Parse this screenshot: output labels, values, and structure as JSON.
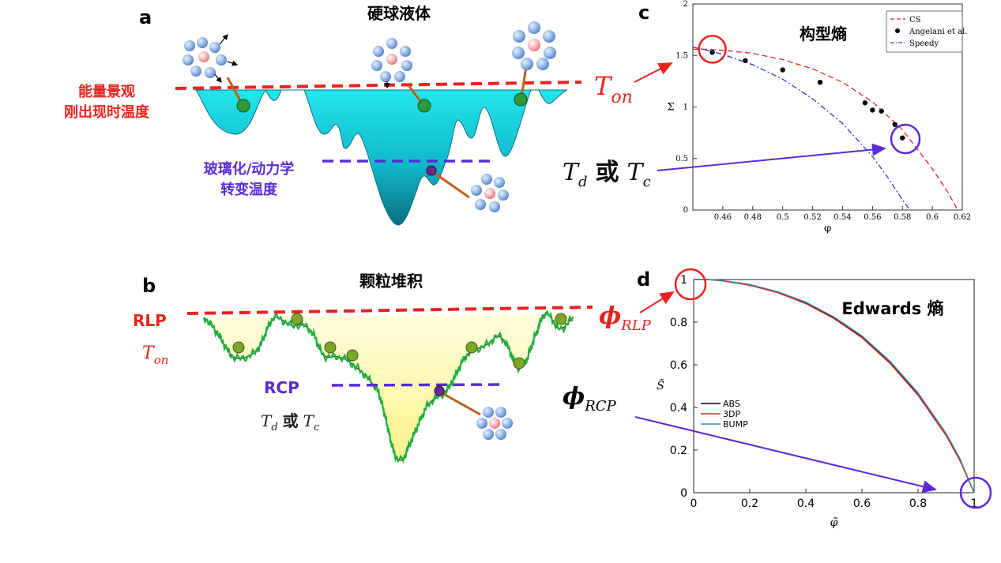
{
  "figure": {
    "panel_labels": {
      "a": "a",
      "b": "b",
      "c": "c",
      "d": "d"
    },
    "colors": {
      "red": "#e8231f",
      "purple": "#5a2bd6",
      "cyan": "#19d6e0",
      "teal_dark": "#0a7f8c",
      "yellow": "#fffcc8",
      "green_line": "#1fae3d",
      "ball_blue": "#7aa6df",
      "ball_pink": "#f7a7ad"
    }
  },
  "panel_a": {
    "title": "硬球液体",
    "left_label_line1": "能量景观",
    "left_label_line2": "刚出现时温度",
    "mid_label_line1": "玻璃化/动力学",
    "mid_label_line2": "转变温度",
    "t_on_T": "T",
    "t_on_sub": "on"
  },
  "panel_b": {
    "title": "颗粒堆积",
    "rlp": "RLP",
    "t_on_T": "T",
    "t_on_sub": "on",
    "rcp": "RCP",
    "td_T": "T",
    "td_sub": "d",
    "or": "或",
    "tc_T": "T",
    "tc_sub": "c",
    "phi": "ϕ",
    "phi_rlp_sub": "RLP",
    "phi_rcp_sub": "RCP"
  },
  "mid_text": {
    "td_T": "T",
    "td_sub": "d",
    "or": "或",
    "tc_T": "T",
    "tc_sub": "c"
  },
  "chart_data": [
    {
      "type": "line",
      "panel": "c",
      "title": "构型熵",
      "xlabel": "φ",
      "ylabel": "Σ",
      "xlim": [
        0.44,
        0.62
      ],
      "ylim": [
        0,
        2
      ],
      "x_ticks": [
        "0.46",
        "0.48",
        "0.5",
        "0.52",
        "0.54",
        "0.56",
        "0.58",
        "0.6",
        "0.62"
      ],
      "y_ticks": [
        "0",
        "0.5",
        "1",
        "1.5",
        "2"
      ],
      "legend": [
        "CS",
        "Angelani et al.",
        "Speedy"
      ],
      "legend_position": "top-right",
      "series": [
        {
          "name": "CS",
          "style": "dashed",
          "color": "#e8231f",
          "x": [
            0.44,
            0.45,
            0.46,
            0.48,
            0.5,
            0.52,
            0.54,
            0.56,
            0.58,
            0.6,
            0.61,
            0.617
          ],
          "y": [
            1.56,
            1.56,
            1.55,
            1.52,
            1.46,
            1.37,
            1.24,
            1.05,
            0.78,
            0.4,
            0.18,
            0.0
          ]
        },
        {
          "name": "Angelani et al.",
          "style": "points",
          "color": "#000000",
          "x": [
            0.453,
            0.475,
            0.5,
            0.525,
            0.555,
            0.56,
            0.566,
            0.575,
            0.58
          ],
          "y": [
            1.53,
            1.45,
            1.36,
            1.24,
            1.04,
            0.97,
            0.96,
            0.83,
            0.7
          ]
        },
        {
          "name": "Speedy",
          "style": "dash-dot",
          "color": "#2a3bd6",
          "x": [
            0.44,
            0.45,
            0.46,
            0.48,
            0.5,
            0.52,
            0.54,
            0.56,
            0.57,
            0.58,
            0.585
          ],
          "y": [
            1.58,
            1.55,
            1.51,
            1.41,
            1.27,
            1.08,
            0.84,
            0.52,
            0.32,
            0.1,
            0.0
          ]
        }
      ]
    },
    {
      "type": "line",
      "panel": "d",
      "title": "Edwards 熵",
      "xlabel": "φ̃",
      "ylabel": "S̃",
      "xlim": [
        0,
        1
      ],
      "ylim": [
        0,
        1
      ],
      "x_ticks": [
        "0",
        "0.2",
        "0.4",
        "0.6",
        "0.8",
        "1"
      ],
      "y_ticks": [
        "0",
        "0.2",
        "0.4",
        "0.6",
        "0.8",
        "1"
      ],
      "legend": [
        "ABS",
        "3DP",
        "BUMP"
      ],
      "legend_position": "bottom-left",
      "series": [
        {
          "name": "ABS",
          "color": "#000000",
          "x": [
            0,
            0.05,
            0.1,
            0.2,
            0.3,
            0.4,
            0.5,
            0.6,
            0.7,
            0.8,
            0.9,
            0.95,
            1.0
          ],
          "y": [
            1.0,
            1.0,
            0.995,
            0.975,
            0.94,
            0.89,
            0.82,
            0.73,
            0.61,
            0.46,
            0.27,
            0.15,
            0.0
          ]
        },
        {
          "name": "3DP",
          "color": "#e8231f",
          "x": [
            0,
            0.05,
            0.1,
            0.2,
            0.3,
            0.4,
            0.5,
            0.6,
            0.7,
            0.8,
            0.9,
            0.95,
            1.0
          ],
          "y": [
            1.0,
            1.0,
            0.994,
            0.973,
            0.938,
            0.887,
            0.817,
            0.727,
            0.607,
            0.457,
            0.268,
            0.148,
            0.0
          ]
        },
        {
          "name": "BUMP",
          "color": "#3a8fa6",
          "x": [
            0,
            0.05,
            0.1,
            0.2,
            0.3,
            0.4,
            0.5,
            0.6,
            0.7,
            0.8,
            0.9,
            0.95,
            1.0
          ],
          "y": [
            1.0,
            1.0,
            0.996,
            0.977,
            0.943,
            0.894,
            0.825,
            0.736,
            0.617,
            0.468,
            0.279,
            0.158,
            0.0
          ]
        }
      ]
    }
  ]
}
